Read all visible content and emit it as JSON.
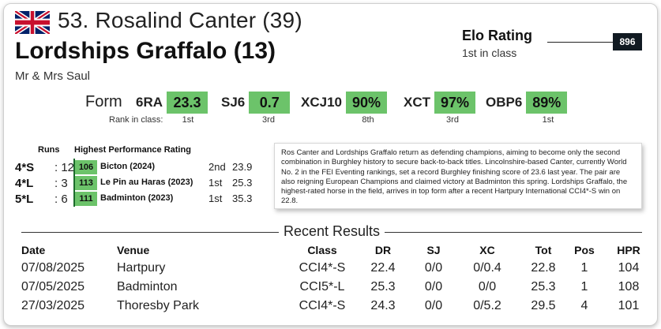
{
  "header": {
    "flag_icon": "uk-flag-icon",
    "rider": "53. Rosalind Canter (39)",
    "horse": "Lordships Graffalo (13)",
    "owner": "Mr & Mrs Saul"
  },
  "elo": {
    "label": "Elo Rating",
    "class_rank": "1st in class",
    "value": "896"
  },
  "form": {
    "label": "Form",
    "rank_label": "Rank in class:",
    "items": [
      {
        "code": "6RA",
        "value": "23.3",
        "rank": "1st"
      },
      {
        "code": "SJ6",
        "value": "0.7",
        "rank": "3rd"
      },
      {
        "code": "XCJ10",
        "value": "90%",
        "rank": "8th"
      },
      {
        "code": "XCT",
        "value": "97%",
        "rank": "3rd"
      },
      {
        "code": "OBP6",
        "value": "89%",
        "rank": "1st"
      }
    ],
    "highlight_color": "#6cc36a"
  },
  "performance": {
    "runs_header": "Runs",
    "hpr_header": "Highest Performance Rating",
    "rows": [
      {
        "level": "4*S",
        "runs": "12",
        "hpr": "106",
        "event": "Bicton (2024)",
        "place": "2nd",
        "score": "23.9"
      },
      {
        "level": "4*L",
        "runs": "3",
        "hpr": "113",
        "event": "Le Pin au Haras (2023)",
        "place": "1st",
        "score": "25.3"
      },
      {
        "level": "5*L",
        "runs": "6",
        "hpr": "111",
        "event": "Badminton (2023)",
        "place": "1st",
        "score": "35.3"
      }
    ]
  },
  "description": "Ros Canter and Lordships Graffalo return as defending champions, aiming to become only the second combination in Burghley history to secure back-to-back titles. Lincolnshire-based Canter, currently World No. 2 in the FEI Eventing rankings, set a record Burghley finishing score of 23.6 last year. The pair are also reigning European Champions and claimed victory at Badminton this spring. Lordships Graffalo, the highest-rated horse in the field, arrives in top form after a recent Hartpury International CCI4*-S win on 22.8.",
  "recent_results": {
    "title": "Recent Results",
    "headers": {
      "date": "Date",
      "venue": "Venue",
      "class": "Class",
      "dr": "DR",
      "sj": "SJ",
      "xc": "XC",
      "tot": "Tot",
      "pos": "Pos",
      "hpr": "HPR"
    },
    "rows": [
      {
        "date": "07/08/2025",
        "venue": "Hartpury",
        "class": "CCI4*-S",
        "dr": "22.4",
        "sj": "0/0",
        "xc": "0/0.4",
        "tot": "22.8",
        "pos": "1",
        "hpr": "104"
      },
      {
        "date": "07/05/2025",
        "venue": "Badminton",
        "class": "CCI5*-L",
        "dr": "25.3",
        "sj": "0/0",
        "xc": "0/0",
        "tot": "25.3",
        "pos": "1",
        "hpr": "108"
      },
      {
        "date": "27/03/2025",
        "venue": "Thoresby Park",
        "class": "CCI4*-S",
        "dr": "24.3",
        "sj": "0/0",
        "xc": "0/5.2",
        "tot": "29.5",
        "pos": "4",
        "hpr": "101"
      }
    ]
  }
}
